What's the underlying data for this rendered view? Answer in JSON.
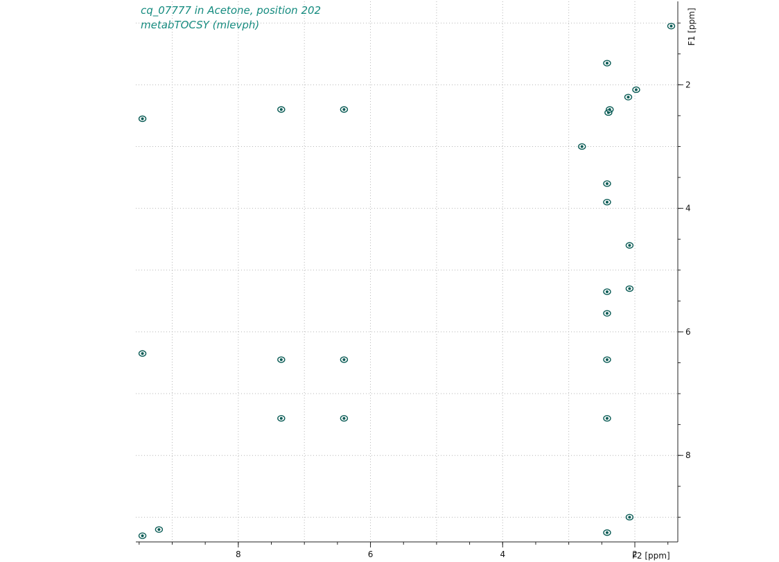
{
  "chart_data": {
    "type": "scatter",
    "title_lines": [
      "cq_07777 in Acetone, position 202",
      "metabTOCSY (mlevph)"
    ],
    "xlabel": "F2 [ppm]",
    "ylabel": "F1 [ppm]",
    "xlim": [
      9.55,
      1.35
    ],
    "ylim": [
      0.65,
      9.4
    ],
    "x_ticks": [
      8,
      6,
      4,
      2
    ],
    "y_ticks": [
      2,
      4,
      6,
      8
    ],
    "grid": true,
    "color": "#0b5c56",
    "peaks": [
      {
        "x": 1.45,
        "y": 1.05
      },
      {
        "x": 1.98,
        "y": 2.08
      },
      {
        "x": 2.1,
        "y": 2.2
      },
      {
        "x": 2.38,
        "y": 2.4
      },
      {
        "x": 2.4,
        "y": 2.45
      },
      {
        "x": 2.42,
        "y": 1.65
      },
      {
        "x": 2.8,
        "y": 3.0
      },
      {
        "x": 7.35,
        "y": 2.4
      },
      {
        "x": 6.4,
        "y": 2.4
      },
      {
        "x": 9.45,
        "y": 2.55
      },
      {
        "x": 2.42,
        "y": 3.6
      },
      {
        "x": 2.42,
        "y": 3.9
      },
      {
        "x": 2.08,
        "y": 4.6
      },
      {
        "x": 2.08,
        "y": 5.3
      },
      {
        "x": 2.42,
        "y": 5.35
      },
      {
        "x": 2.42,
        "y": 5.7
      },
      {
        "x": 7.35,
        "y": 6.45
      },
      {
        "x": 6.4,
        "y": 6.45
      },
      {
        "x": 2.42,
        "y": 6.45
      },
      {
        "x": 9.45,
        "y": 6.35
      },
      {
        "x": 7.35,
        "y": 7.4
      },
      {
        "x": 6.4,
        "y": 7.4
      },
      {
        "x": 2.42,
        "y": 7.4
      },
      {
        "x": 2.08,
        "y": 9.0
      },
      {
        "x": 2.42,
        "y": 9.25
      },
      {
        "x": 9.45,
        "y": 9.3
      },
      {
        "x": 9.2,
        "y": 9.2
      }
    ]
  }
}
